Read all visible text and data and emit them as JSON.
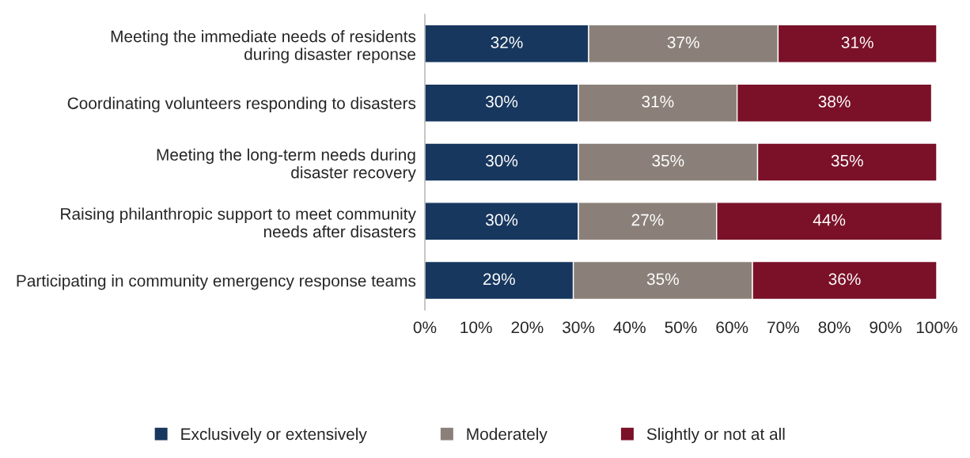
{
  "chart_data": {
    "type": "bar",
    "orientation": "horizontal",
    "stacked": true,
    "data_labels": true,
    "legend": "bottom",
    "grid": false,
    "categories": [
      "Meeting the immediate needs of residents\nduring disaster reponse",
      "Coordinating volunteers responding to disasters",
      "Meeting the long-term needs during\ndisaster recovery",
      "Raising philanthropic support to meet community\nneeds after disasters",
      "Participating in community emergency response teams"
    ],
    "series": [
      {
        "name": "Exclusively or extensively",
        "color": "#17375e",
        "values": [
          32,
          30,
          30,
          30,
          29
        ],
        "value_labels": [
          "32%",
          "30%",
          "30%",
          "30%",
          "29%"
        ]
      },
      {
        "name": "Moderately",
        "color": "#8b8079",
        "values": [
          37,
          31,
          35,
          27,
          35
        ],
        "value_labels": [
          "37%",
          "31%",
          "35%",
          "27%",
          "35%"
        ]
      },
      {
        "name": "Slightly or not at all",
        "color": "#7a1128",
        "values": [
          31,
          38,
          35,
          44,
          36
        ],
        "value_labels": [
          "31%",
          "38%",
          "35%",
          "44%",
          "36%"
        ]
      }
    ],
    "xlim": [
      0,
      101
    ],
    "xticks": [
      {
        "value": 0,
        "label": "0%"
      },
      {
        "value": 10,
        "label": "10%"
      },
      {
        "value": 20,
        "label": "20%"
      },
      {
        "value": 30,
        "label": "30%"
      },
      {
        "value": 40,
        "label": "40%"
      },
      {
        "value": 50,
        "label": "50%"
      },
      {
        "value": 60,
        "label": "60%"
      },
      {
        "value": 70,
        "label": "70%"
      },
      {
        "value": 80,
        "label": "80%"
      },
      {
        "value": 90,
        "label": "90%"
      },
      {
        "value": 100,
        "label": "100%"
      }
    ]
  }
}
